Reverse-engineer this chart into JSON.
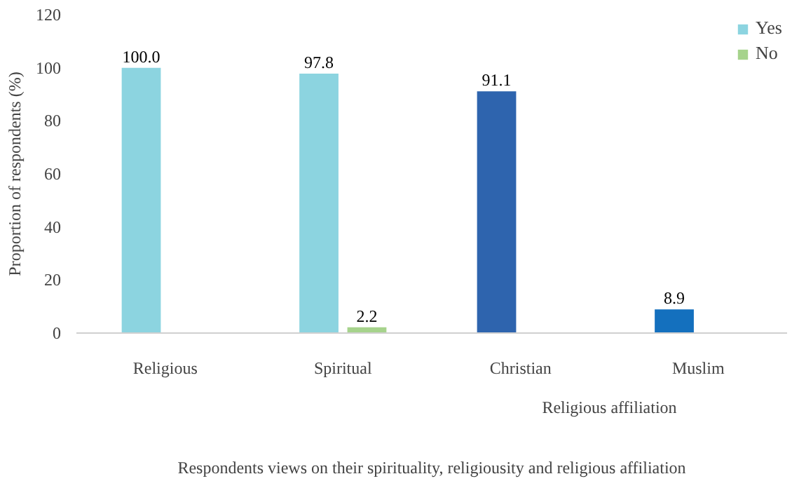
{
  "chart_data": {
    "type": "bar",
    "xlabel": "Respondents views on their spirituality, religiousity and religious affiliation",
    "ylabel": "Proportion of respondents (%)",
    "categories": [
      "Religious",
      "Spiritual",
      "Christian",
      "Muslim"
    ],
    "series": [
      {
        "name": "Yes",
        "color": "#8cd4e0",
        "colors": [
          "#8cd4e0",
          "#8cd4e0",
          "#2e64ae",
          "#1470be"
        ],
        "values": [
          100.0,
          97.8,
          91.1,
          8.9
        ],
        "value_labels": [
          "100.0",
          "97.8",
          "91.1",
          "8.9"
        ]
      },
      {
        "name": "No",
        "color": "#a6d38c",
        "values": [
          null,
          2.2,
          null,
          null
        ],
        "value_labels": [
          null,
          "2.2",
          null,
          null
        ]
      }
    ],
    "annotations": [
      "Religious affiliation"
    ],
    "ylim": [
      0,
      120
    ],
    "yticks": [
      0,
      20,
      40,
      60,
      80,
      100,
      120
    ],
    "grid": false,
    "legend": "top right"
  }
}
